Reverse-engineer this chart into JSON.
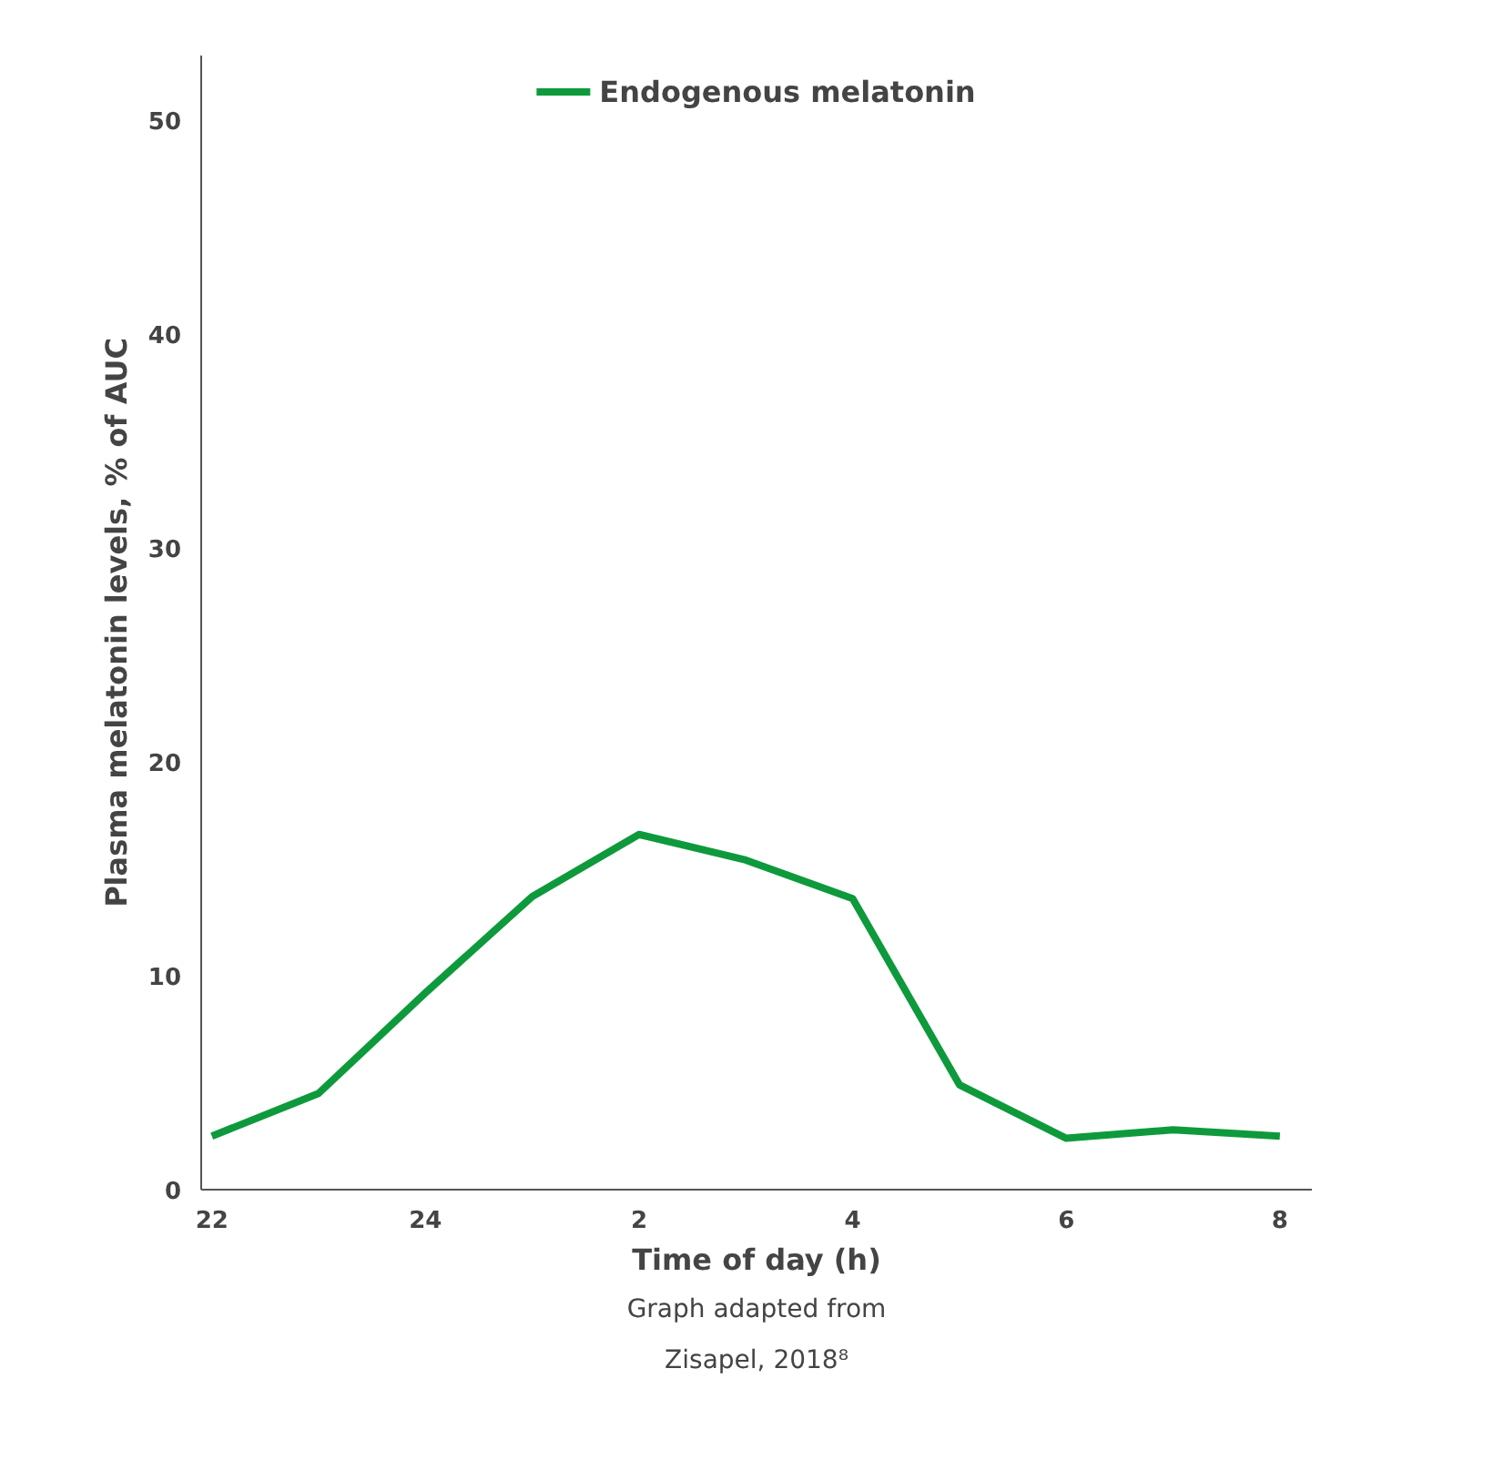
{
  "chart_data": {
    "type": "line",
    "xlabel": "Time of day (h)",
    "ylabel": "Plasma melatonin levels, % of AUC",
    "categories": [
      "22",
      null,
      "24",
      null,
      "2",
      null,
      "4",
      null,
      "6",
      null,
      "8"
    ],
    "series": [
      {
        "name": "Endogenous melatonin",
        "color": "#0e9a3c",
        "values": [
          2.5,
          4.5,
          9.2,
          13.7,
          16.6,
          15.4,
          13.6,
          4.9,
          2.4,
          2.8,
          2.5
        ]
      }
    ],
    "ylim": [
      0,
      53
    ],
    "yticks": [
      0,
      10,
      20,
      30,
      40,
      50
    ],
    "grid": false,
    "legend": "top",
    "marker": "none",
    "line_style": "solid",
    "annotations": [
      "Graph adapted from\nZisapel, 2018⁸"
    ]
  }
}
